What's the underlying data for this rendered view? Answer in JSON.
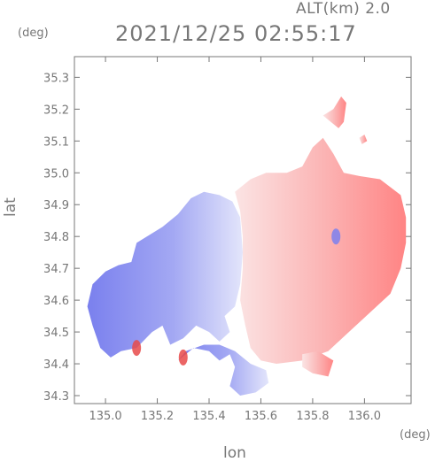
{
  "header": {
    "altitude": "ALT(km)  2.0",
    "timestamp": "2021/12/25 02:55:17"
  },
  "colors": {
    "axis": "#777777",
    "negative": "#7b80ee",
    "positive": "#ff8a8a",
    "background": "#ffffff"
  },
  "chart_data": {
    "type": "heatmap",
    "title": "2021/12/25 02:55:17",
    "subtitle": "ALT(km)  2.0",
    "xlabel": "lon",
    "ylabel": "lat",
    "xunit": "(deg)",
    "yunit": "(deg)",
    "xlim": [
      134.88,
      136.18
    ],
    "ylim": [
      34.275,
      35.365
    ],
    "xticks": [
      135.0,
      135.2,
      135.4,
      135.6,
      135.8,
      136.0
    ],
    "xtick_labels": [
      "135.0",
      "135.2",
      "135.4",
      "135.6",
      "135.8",
      "136.0"
    ],
    "yticks": [
      34.3,
      34.4,
      34.5,
      34.6,
      34.7,
      34.8,
      34.9,
      35.0,
      35.1,
      35.2,
      35.3
    ],
    "ytick_labels": [
      "34.3",
      "34.4",
      "34.5",
      "34.6",
      "34.7",
      "34.8",
      "34.9",
      "35.0",
      "35.1",
      "35.2",
      "35.3"
    ],
    "grid": false,
    "colorscale": "blue (negative) to red (positive)",
    "regions": [
      {
        "sign": "negative",
        "points": [
          [
            135.12,
            34.78
          ],
          [
            135.22,
            34.83
          ],
          [
            135.28,
            34.87
          ],
          [
            135.33,
            34.92
          ],
          [
            135.38,
            34.94
          ],
          [
            135.44,
            34.93
          ],
          [
            135.49,
            34.91
          ],
          [
            135.52,
            34.86
          ],
          [
            135.53,
            34.75
          ],
          [
            135.52,
            34.65
          ],
          [
            135.5,
            34.58
          ],
          [
            135.46,
            34.55
          ],
          [
            135.48,
            34.5
          ],
          [
            135.44,
            34.47
          ],
          [
            135.4,
            34.5
          ],
          [
            135.35,
            34.52
          ],
          [
            135.3,
            34.48
          ],
          [
            135.25,
            34.46
          ],
          [
            135.22,
            34.52
          ],
          [
            135.18,
            34.5
          ],
          [
            135.12,
            34.45
          ],
          [
            135.06,
            34.44
          ],
          [
            135.02,
            34.42
          ],
          [
            134.98,
            34.45
          ],
          [
            134.95,
            34.52
          ],
          [
            134.93,
            34.58
          ],
          [
            134.95,
            34.65
          ],
          [
            135.0,
            34.69
          ],
          [
            135.05,
            34.71
          ],
          [
            135.1,
            34.72
          ]
        ]
      },
      {
        "sign": "negative",
        "points": [
          [
            135.28,
            34.41
          ],
          [
            135.34,
            34.45
          ],
          [
            135.4,
            34.44
          ],
          [
            135.44,
            34.41
          ],
          [
            135.48,
            34.43
          ],
          [
            135.5,
            34.39
          ],
          [
            135.48,
            34.33
          ],
          [
            135.52,
            34.3
          ],
          [
            135.58,
            34.31
          ],
          [
            135.63,
            34.34
          ],
          [
            135.62,
            34.38
          ],
          [
            135.56,
            34.4
          ],
          [
            135.5,
            34.44
          ],
          [
            135.44,
            34.46
          ],
          [
            135.38,
            34.46
          ],
          [
            135.31,
            34.44
          ]
        ]
      },
      {
        "sign": "positive",
        "points": [
          [
            135.5,
            34.94
          ],
          [
            135.56,
            34.98
          ],
          [
            135.62,
            35.0
          ],
          [
            135.7,
            35.0
          ],
          [
            135.76,
            35.02
          ],
          [
            135.8,
            35.08
          ],
          [
            135.84,
            35.11
          ],
          [
            135.88,
            35.06
          ],
          [
            135.92,
            35.0
          ],
          [
            135.98,
            34.99
          ],
          [
            136.06,
            34.98
          ],
          [
            136.14,
            34.93
          ],
          [
            136.16,
            34.86
          ],
          [
            136.16,
            34.78
          ],
          [
            136.14,
            34.7
          ],
          [
            136.1,
            34.62
          ],
          [
            136.02,
            34.56
          ],
          [
            135.94,
            34.5
          ],
          [
            135.86,
            34.44
          ],
          [
            135.76,
            34.41
          ],
          [
            135.66,
            34.4
          ],
          [
            135.6,
            34.41
          ],
          [
            135.56,
            34.45
          ],
          [
            135.54,
            34.52
          ],
          [
            135.52,
            34.6
          ],
          [
            135.53,
            34.7
          ],
          [
            135.53,
            34.8
          ],
          [
            135.52,
            34.88
          ]
        ]
      },
      {
        "sign": "positive",
        "points": [
          [
            135.84,
            35.18
          ],
          [
            135.88,
            35.2
          ],
          [
            135.91,
            35.24
          ],
          [
            135.93,
            35.22
          ],
          [
            135.92,
            35.16
          ],
          [
            135.9,
            35.14
          ],
          [
            135.87,
            35.16
          ]
        ]
      },
      {
        "sign": "positive",
        "points": [
          [
            135.98,
            35.11
          ],
          [
            136.0,
            35.12
          ],
          [
            136.01,
            35.1
          ],
          [
            135.99,
            35.09
          ]
        ]
      },
      {
        "sign": "positive",
        "points": [
          [
            135.76,
            34.43
          ],
          [
            135.82,
            34.44
          ],
          [
            135.88,
            34.41
          ],
          [
            135.86,
            34.36
          ],
          [
            135.8,
            34.37
          ],
          [
            135.76,
            34.39
          ]
        ]
      }
    ],
    "annotations": [
      {
        "sign": "negative_strong",
        "center": [
          135.89,
          34.8
        ],
        "label": ""
      },
      {
        "sign": "positive_strong",
        "center": [
          135.12,
          34.45
        ],
        "label": ""
      },
      {
        "sign": "positive_strong",
        "center": [
          135.3,
          34.42
        ],
        "label": ""
      }
    ]
  }
}
